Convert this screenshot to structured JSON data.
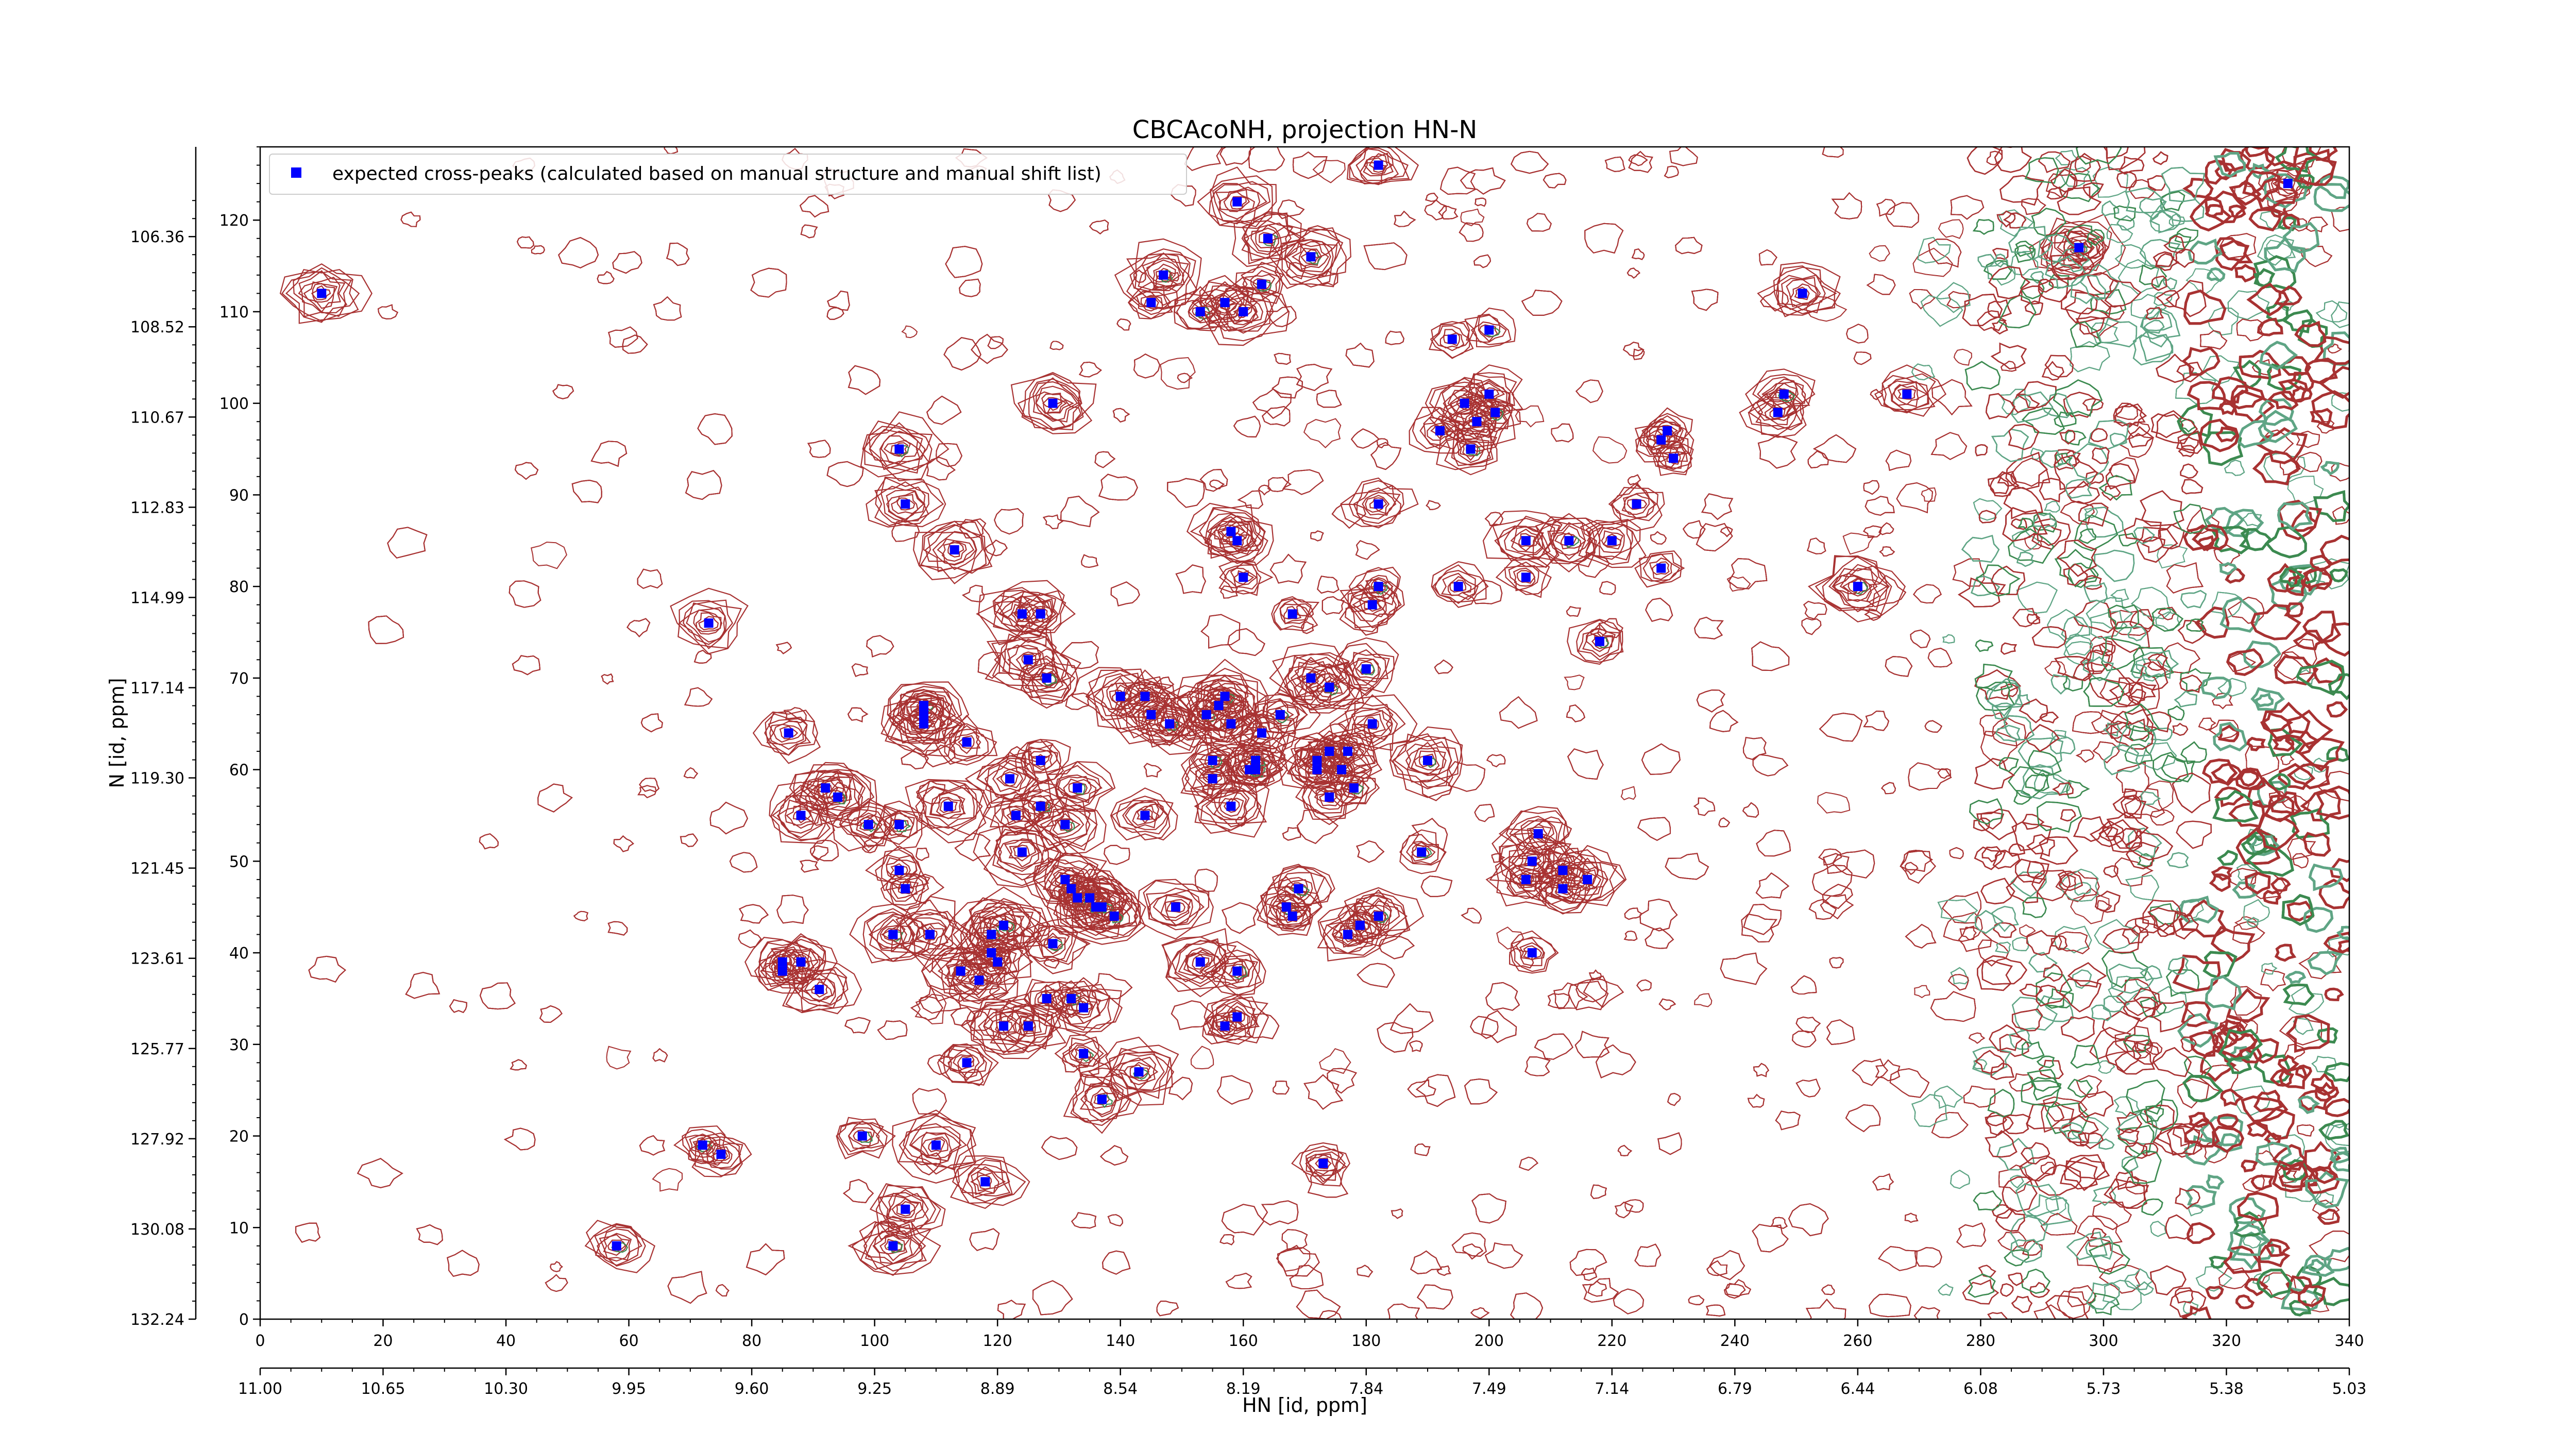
{
  "chart_data": {
    "type": "scatter",
    "title": "CBCAcoNH, projection HN-N",
    "xlabel": "HN [id, ppm]",
    "ylabel": "N [id, ppm]",
    "xlim": [
      0,
      340
    ],
    "ylim": [
      0,
      128
    ],
    "grid": false,
    "legend_position": "top-left",
    "x_ticks": [
      "0",
      "20",
      "40",
      "60",
      "80",
      "100",
      "120",
      "140",
      "160",
      "180",
      "200",
      "220",
      "240",
      "260",
      "280",
      "300",
      "320",
      "340"
    ],
    "y_ticks": [
      "0",
      "10",
      "20",
      "30",
      "40",
      "50",
      "60",
      "70",
      "80",
      "90",
      "100",
      "110",
      "120"
    ],
    "ppm_x_ticks": [
      "11.00",
      "10.65",
      "10.30",
      "9.95",
      "9.60",
      "9.25",
      "8.89",
      "8.54",
      "8.19",
      "7.84",
      "7.49",
      "7.14",
      "6.79",
      "6.44",
      "6.08",
      "5.73",
      "5.38",
      "5.03"
    ],
    "ppm_y_ticks": [
      "132.24",
      "130.08",
      "127.92",
      "125.77",
      "123.61",
      "121.45",
      "119.30",
      "117.14",
      "114.99",
      "112.83",
      "110.67",
      "108.52",
      "106.36"
    ],
    "series": [
      {
        "name": "expected cross-peaks (calculated based on manual structure and manual shift list)",
        "color": "#0000ff",
        "points": [
          [
            10,
            112
          ],
          [
            58,
            8
          ],
          [
            72,
            19
          ],
          [
            75,
            18
          ],
          [
            73,
            76
          ],
          [
            85,
            38
          ],
          [
            85,
            39
          ],
          [
            86,
            64
          ],
          [
            88,
            55
          ],
          [
            88,
            39
          ],
          [
            91,
            36
          ],
          [
            92,
            58
          ],
          [
            94,
            57
          ],
          [
            98,
            20
          ],
          [
            99,
            54
          ],
          [
            103,
            8
          ],
          [
            104,
            54
          ],
          [
            103,
            42
          ],
          [
            104,
            49
          ],
          [
            104,
            95
          ],
          [
            105,
            12
          ],
          [
            105,
            47
          ],
          [
            105,
            89
          ],
          [
            108,
            67
          ],
          [
            108,
            66
          ],
          [
            108,
            65
          ],
          [
            109,
            42
          ],
          [
            110,
            19
          ],
          [
            112,
            56
          ],
          [
            113,
            84
          ],
          [
            115,
            63
          ],
          [
            115,
            28
          ],
          [
            114,
            38
          ],
          [
            117,
            37
          ],
          [
            118,
            15
          ],
          [
            119,
            42
          ],
          [
            119,
            40
          ],
          [
            120,
            39
          ],
          [
            121,
            32
          ],
          [
            121,
            43
          ],
          [
            122,
            59
          ],
          [
            123,
            55
          ],
          [
            124,
            77
          ],
          [
            124,
            51
          ],
          [
            125,
            32
          ],
          [
            125,
            72
          ],
          [
            127,
            61
          ],
          [
            127,
            56
          ],
          [
            127,
            77
          ],
          [
            128,
            35
          ],
          [
            128,
            70
          ],
          [
            129,
            41
          ],
          [
            129,
            100
          ],
          [
            131,
            54
          ],
          [
            131,
            48
          ],
          [
            132,
            35
          ],
          [
            132,
            47
          ],
          [
            133,
            46
          ],
          [
            133,
            58
          ],
          [
            134,
            34
          ],
          [
            134,
            29
          ],
          [
            135,
            46
          ],
          [
            136,
            45
          ],
          [
            137,
            45
          ],
          [
            137,
            24
          ],
          [
            139,
            44
          ],
          [
            140,
            68
          ],
          [
            143,
            27
          ],
          [
            144,
            68
          ],
          [
            144,
            55
          ],
          [
            145,
            66
          ],
          [
            145,
            111
          ],
          [
            147,
            114
          ],
          [
            148,
            65
          ],
          [
            149,
            45
          ],
          [
            154,
            66
          ],
          [
            153,
            39
          ],
          [
            153,
            110
          ],
          [
            155,
            59
          ],
          [
            155,
            61
          ],
          [
            156,
            67
          ],
          [
            157,
            32
          ],
          [
            157,
            111
          ],
          [
            157,
            68
          ],
          [
            158,
            56
          ],
          [
            158,
            65
          ],
          [
            158,
            86
          ],
          [
            159,
            85
          ],
          [
            159,
            122
          ],
          [
            159,
            38
          ],
          [
            159,
            33
          ],
          [
            160,
            81
          ],
          [
            160,
            110
          ],
          [
            161,
            60
          ],
          [
            162,
            60
          ],
          [
            162,
            61
          ],
          [
            163,
            113
          ],
          [
            163,
            64
          ],
          [
            164,
            118
          ],
          [
            166,
            66
          ],
          [
            167,
            45
          ],
          [
            168,
            44
          ],
          [
            168,
            77
          ],
          [
            169,
            47
          ],
          [
            171,
            70
          ],
          [
            171,
            116
          ],
          [
            172,
            60
          ],
          [
            172,
            61
          ],
          [
            173,
            17
          ],
          [
            174,
            62
          ],
          [
            174,
            69
          ],
          [
            174,
            57
          ],
          [
            176,
            60
          ],
          [
            177,
            62
          ],
          [
            177,
            42
          ],
          [
            178,
            58
          ],
          [
            179,
            43
          ],
          [
            180,
            71
          ],
          [
            181,
            65
          ],
          [
            181,
            78
          ],
          [
            182,
            44
          ],
          [
            182,
            80
          ],
          [
            182,
            89
          ],
          [
            182,
            126
          ],
          [
            189,
            51
          ],
          [
            190,
            61
          ],
          [
            192,
            97
          ],
          [
            194,
            107
          ],
          [
            195,
            80
          ],
          [
            196,
            100
          ],
          [
            197,
            95
          ],
          [
            198,
            98
          ],
          [
            200,
            101
          ],
          [
            200,
            108
          ],
          [
            201,
            99
          ],
          [
            206,
            81
          ],
          [
            206,
            85
          ],
          [
            206,
            48
          ],
          [
            207,
            50
          ],
          [
            207,
            40
          ],
          [
            208,
            53
          ],
          [
            212,
            49
          ],
          [
            212,
            47
          ],
          [
            213,
            85
          ],
          [
            216,
            48
          ],
          [
            218,
            74
          ],
          [
            220,
            85
          ],
          [
            224,
            89
          ],
          [
            228,
            82
          ],
          [
            228,
            96
          ],
          [
            229,
            97
          ],
          [
            230,
            94
          ],
          [
            247,
            99
          ],
          [
            248,
            101
          ],
          [
            251,
            112
          ],
          [
            260,
            80
          ],
          [
            268,
            101
          ],
          [
            296,
            117
          ],
          [
            330,
            124
          ]
        ]
      }
    ]
  }
}
